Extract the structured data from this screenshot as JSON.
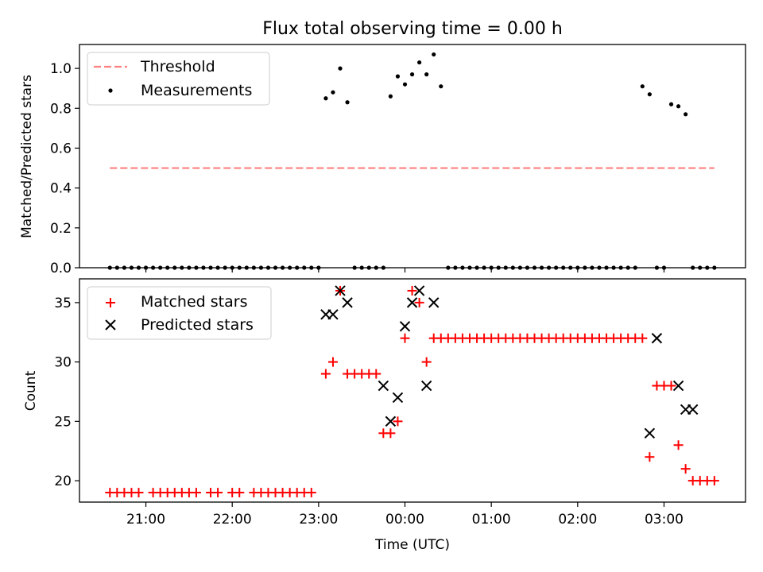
{
  "title": "Flux total observing time = 0.00 h",
  "colors": {
    "threshold": "#ff8080",
    "measurement": "#000000",
    "matched": "#ff0000",
    "predicted": "#000000"
  },
  "chart_data": [
    {
      "type": "scatter",
      "title": "Flux total observing time = 0.00 h",
      "xlabel": "",
      "ylabel": "Matched/Predicted stars",
      "ylim": [
        0.0,
        1.12
      ],
      "yticks": [
        "0.0",
        "0.2",
        "0.4",
        "0.6",
        "0.8",
        "1.0"
      ],
      "legend": {
        "placement": "upper left",
        "entries": [
          {
            "label": "Threshold",
            "marker": "dashed-line"
          },
          {
            "label": "Measurements",
            "marker": "dot"
          }
        ]
      },
      "threshold": {
        "name": "Threshold",
        "y": 0.5,
        "x": [
          "20:35",
          "03:35"
        ]
      },
      "series": [
        {
          "name": "Measurements",
          "x": [
            "20:35",
            "20:40",
            "20:45",
            "20:50",
            "20:55",
            "21:00",
            "21:05",
            "21:10",
            "21:15",
            "21:20",
            "21:25",
            "21:30",
            "21:35",
            "21:40",
            "21:45",
            "21:50",
            "21:55",
            "22:00",
            "22:05",
            "22:10",
            "22:15",
            "22:20",
            "22:25",
            "22:30",
            "22:35",
            "22:40",
            "22:45",
            "22:50",
            "22:55",
            "23:00",
            "23:05",
            "23:10",
            "23:15",
            "23:20",
            "23:25",
            "23:30",
            "23:35",
            "23:40",
            "23:45",
            "23:50",
            "23:55",
            "00:00",
            "00:05",
            "00:10",
            "00:15",
            "00:20",
            "00:25",
            "00:30",
            "00:35",
            "00:40",
            "00:45",
            "00:50",
            "00:55",
            "01:00",
            "01:05",
            "01:10",
            "01:15",
            "01:20",
            "01:25",
            "01:30",
            "01:35",
            "01:40",
            "01:45",
            "01:50",
            "01:55",
            "02:00",
            "02:05",
            "02:10",
            "02:15",
            "02:20",
            "02:25",
            "02:30",
            "02:35",
            "02:40",
            "02:45",
            "02:50",
            "02:55",
            "03:00",
            "03:05",
            "03:10",
            "03:15",
            "03:20",
            "03:25",
            "03:30",
            "03:35"
          ],
          "y": [
            0,
            0,
            0,
            0,
            0,
            0,
            0,
            0,
            0,
            0,
            0,
            0,
            0,
            0,
            0,
            0,
            0,
            0,
            0,
            0,
            0,
            0,
            0,
            0,
            0,
            0,
            0,
            0,
            0,
            0,
            0.85,
            0.88,
            1.0,
            0.83,
            0,
            0,
            0,
            0,
            0,
            0.86,
            0.96,
            0.92,
            0.97,
            1.03,
            0.97,
            1.07,
            0.91,
            0,
            0,
            0,
            0,
            0,
            0,
            0,
            0,
            0,
            0,
            0,
            0,
            0,
            0,
            0,
            0,
            0,
            0,
            0,
            0,
            0,
            0,
            0,
            0,
            0,
            0,
            0,
            0.91,
            0.87,
            0,
            0,
            0.82,
            0.81,
            0.77,
            0,
            0,
            0,
            0
          ]
        }
      ]
    },
    {
      "type": "scatter",
      "xlabel": "Time (UTC)",
      "ylabel": "Count",
      "ylim": [
        18.2,
        37
      ],
      "yticks": [
        "20",
        "25",
        "30",
        "35"
      ],
      "xticks": [
        "21:00",
        "22:00",
        "23:00",
        "00:00",
        "01:00",
        "02:00",
        "03:00"
      ],
      "legend": {
        "placement": "upper left",
        "entries": [
          {
            "label": "Matched stars",
            "marker": "plus"
          },
          {
            "label": "Predicted stars",
            "marker": "cross"
          }
        ]
      },
      "series": [
        {
          "name": "Matched stars",
          "x": [
            "20:35",
            "20:40",
            "20:45",
            "20:50",
            "20:55",
            "21:05",
            "21:10",
            "21:15",
            "21:20",
            "21:25",
            "21:30",
            "21:35",
            "21:45",
            "21:50",
            "22:00",
            "22:05",
            "22:15",
            "22:20",
            "22:25",
            "22:30",
            "22:35",
            "22:40",
            "22:45",
            "22:50",
            "22:55",
            "23:05",
            "23:10",
            "23:15",
            "23:20",
            "23:25",
            "23:30",
            "23:35",
            "23:40",
            "23:45",
            "23:50",
            "23:55",
            "00:00",
            "00:05",
            "00:10",
            "00:15",
            "00:20",
            "00:25",
            "00:30",
            "00:35",
            "00:40",
            "00:45",
            "00:50",
            "00:55",
            "01:00",
            "01:05",
            "01:10",
            "01:15",
            "01:20",
            "01:25",
            "01:30",
            "01:35",
            "01:40",
            "01:45",
            "01:50",
            "01:55",
            "02:00",
            "02:05",
            "02:10",
            "02:15",
            "02:20",
            "02:25",
            "02:30",
            "02:35",
            "02:40",
            "02:45",
            "02:50",
            "02:55",
            "03:00",
            "03:05",
            "03:10",
            "03:15",
            "03:20",
            "03:25",
            "03:30",
            "03:35"
          ],
          "y": [
            19,
            19,
            19,
            19,
            19,
            19,
            19,
            19,
            19,
            19,
            19,
            19,
            19,
            19,
            19,
            19,
            19,
            19,
            19,
            19,
            19,
            19,
            19,
            19,
            19,
            29,
            30,
            36,
            29,
            29,
            29,
            29,
            29,
            24,
            24,
            25,
            32,
            36,
            35,
            30,
            32,
            32,
            32,
            32,
            32,
            32,
            32,
            32,
            32,
            32,
            32,
            32,
            32,
            32,
            32,
            32,
            32,
            32,
            32,
            32,
            32,
            32,
            32,
            32,
            32,
            32,
            32,
            32,
            32,
            32,
            22,
            28,
            28,
            28,
            23,
            21,
            20,
            20,
            20,
            20
          ]
        },
        {
          "name": "Predicted stars",
          "x": [
            "23:05",
            "23:10",
            "23:15",
            "23:20",
            "23:45",
            "23:50",
            "23:55",
            "00:00",
            "00:05",
            "00:10",
            "00:15",
            "00:20",
            "02:50",
            "02:55",
            "03:10",
            "03:15",
            "03:20"
          ],
          "y": [
            34,
            34,
            36,
            35,
            28,
            25,
            27,
            33,
            35,
            36,
            28,
            35,
            24,
            32,
            28,
            26,
            26
          ]
        }
      ]
    }
  ]
}
